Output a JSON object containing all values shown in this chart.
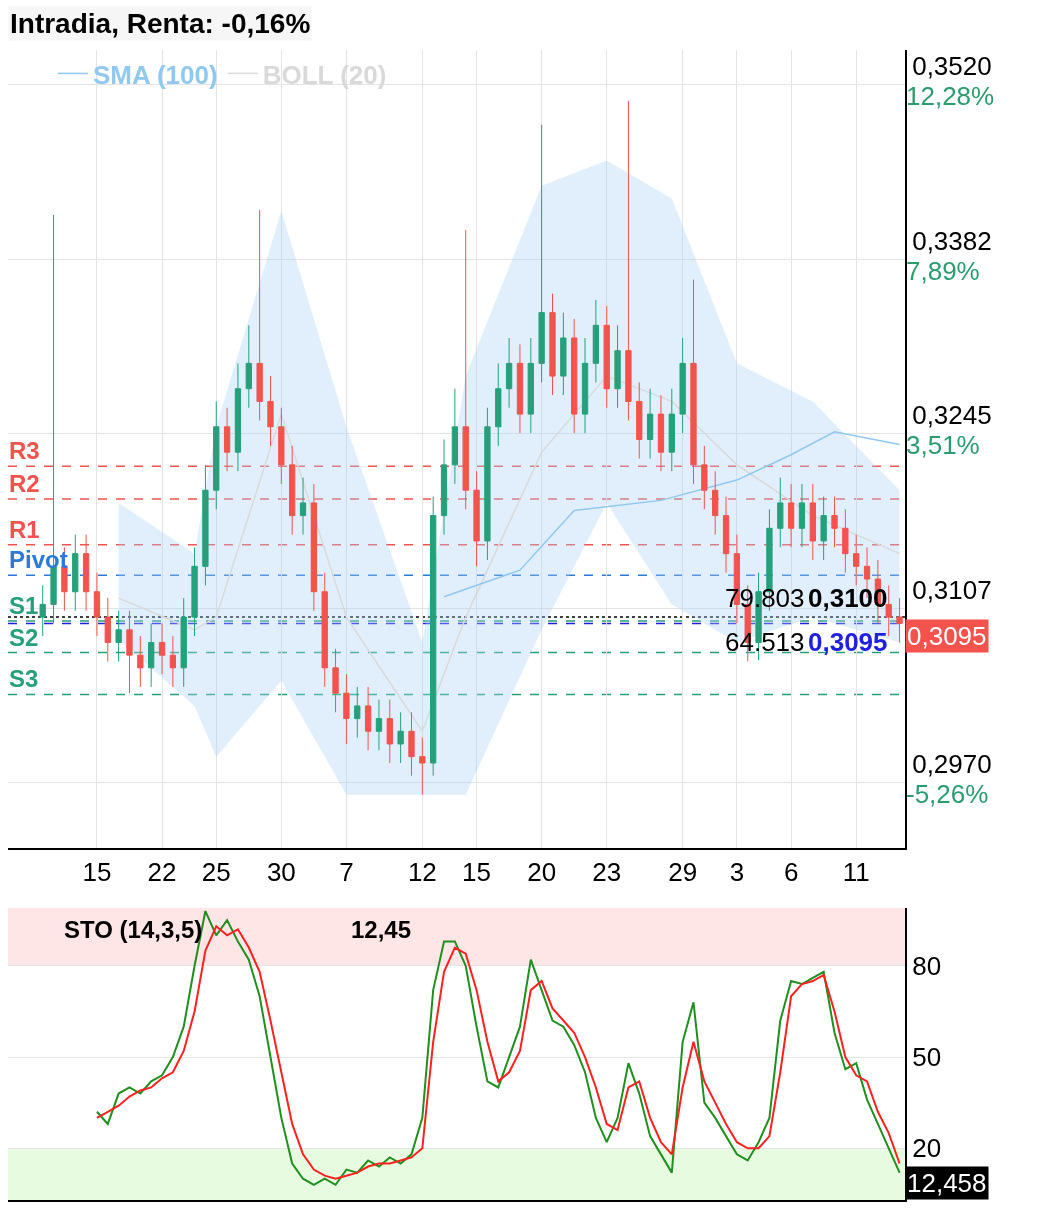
{
  "chart_data": [
    {
      "type": "candlestick",
      "title": "Intradia, Renta: -0,16%",
      "categories": [
        null,
        null,
        null,
        null,
        null,
        "15",
        null,
        null,
        null,
        null,
        null,
        "22",
        null,
        null,
        null,
        null,
        "25",
        null,
        null,
        null,
        null,
        null,
        "30",
        null,
        null,
        null,
        null,
        null,
        "7",
        null,
        null,
        null,
        null,
        null,
        null,
        "12",
        null,
        null,
        null,
        null,
        "15",
        null,
        null,
        null,
        null,
        null,
        "20",
        null,
        null,
        null,
        null,
        null,
        "23",
        null,
        null,
        null,
        null,
        null,
        null,
        "29",
        null,
        null,
        null,
        null,
        "3",
        null,
        null,
        null,
        null,
        "6",
        null,
        null,
        null,
        null,
        null,
        "11",
        null,
        null,
        null,
        null
      ],
      "ohlc": [
        [
          0.31,
          0.3125,
          0.3085,
          0.311
        ],
        [
          0.311,
          0.3417,
          0.3095,
          0.314
        ],
        [
          0.314,
          0.3155,
          0.3105,
          0.312
        ],
        [
          0.312,
          0.3165,
          0.3105,
          0.315
        ],
        [
          0.315,
          0.3165,
          0.3105,
          0.312
        ],
        [
          0.312,
          0.3135,
          0.3085,
          0.31
        ],
        [
          0.31,
          0.3115,
          0.3065,
          0.308
        ],
        [
          0.308,
          0.3105,
          0.3065,
          0.309
        ],
        [
          0.309,
          0.3105,
          0.304,
          0.307
        ],
        [
          0.307,
          0.3085,
          0.3045,
          0.306
        ],
        [
          0.306,
          0.3095,
          0.3045,
          0.308
        ],
        [
          0.308,
          0.3095,
          0.3055,
          0.307
        ],
        [
          0.307,
          0.3085,
          0.3045,
          0.306
        ],
        [
          0.306,
          0.3115,
          0.3045,
          0.31
        ],
        [
          0.31,
          0.3155,
          0.3085,
          0.314
        ],
        [
          0.314,
          0.322,
          0.3125,
          0.32
        ],
        [
          0.32,
          0.327,
          0.3185,
          0.325
        ],
        [
          0.325,
          0.3265,
          0.3215,
          0.323
        ],
        [
          0.323,
          0.33,
          0.3215,
          0.328
        ],
        [
          0.328,
          0.333,
          0.3265,
          0.33
        ],
        [
          0.33,
          0.3421,
          0.3255,
          0.327
        ],
        [
          0.327,
          0.329,
          0.3235,
          0.325
        ],
        [
          0.325,
          0.3265,
          0.3205,
          0.322
        ],
        [
          0.322,
          0.3235,
          0.3165,
          0.318
        ],
        [
          0.318,
          0.321,
          0.3165,
          0.319
        ],
        [
          0.319,
          0.3205,
          0.3105,
          0.312
        ],
        [
          0.312,
          0.3135,
          0.3045,
          0.306
        ],
        [
          0.306,
          0.3075,
          0.3025,
          0.304
        ],
        [
          0.304,
          0.3055,
          0.3,
          0.302
        ],
        [
          0.302,
          0.3045,
          0.3005,
          0.303
        ],
        [
          0.303,
          0.3045,
          0.2995,
          0.301
        ],
        [
          0.301,
          0.3035,
          0.2995,
          0.302
        ],
        [
          0.302,
          0.3035,
          0.2985,
          0.3
        ],
        [
          0.3,
          0.3025,
          0.2985,
          0.301
        ],
        [
          0.301,
          0.3025,
          0.2975,
          0.299
        ],
        [
          0.299,
          0.3005,
          0.296,
          0.2985
        ],
        [
          0.2985,
          0.3195,
          0.2975,
          0.318
        ],
        [
          0.318,
          0.324,
          0.3165,
          0.322
        ],
        [
          0.322,
          0.328,
          0.3205,
          0.325
        ],
        [
          0.325,
          0.3405,
          0.3185,
          0.32
        ],
        [
          0.32,
          0.3215,
          0.314,
          0.316
        ],
        [
          0.316,
          0.3265,
          0.3145,
          0.325
        ],
        [
          0.325,
          0.33,
          0.3235,
          0.328
        ],
        [
          0.328,
          0.332,
          0.3265,
          0.33
        ],
        [
          0.33,
          0.3315,
          0.3245,
          0.326
        ],
        [
          0.326,
          0.332,
          0.3245,
          0.33
        ],
        [
          0.33,
          0.3488,
          0.3285,
          0.334
        ],
        [
          0.334,
          0.3355,
          0.3275,
          0.329
        ],
        [
          0.329,
          0.334,
          0.3275,
          0.332
        ],
        [
          0.332,
          0.3335,
          0.3245,
          0.326
        ],
        [
          0.326,
          0.332,
          0.3245,
          0.33
        ],
        [
          0.33,
          0.335,
          0.3285,
          0.333
        ],
        [
          0.333,
          0.3345,
          0.3265,
          0.328
        ],
        [
          0.328,
          0.333,
          0.3265,
          0.331
        ],
        [
          0.331,
          0.3507,
          0.3255,
          0.327
        ],
        [
          0.327,
          0.3285,
          0.3225,
          0.324
        ],
        [
          0.324,
          0.328,
          0.3225,
          0.326
        ],
        [
          0.326,
          0.3275,
          0.3215,
          0.323
        ],
        [
          0.323,
          0.328,
          0.3215,
          0.326
        ],
        [
          0.326,
          0.332,
          0.3245,
          0.33
        ],
        [
          0.33,
          0.3366,
          0.3205,
          0.322
        ],
        [
          0.322,
          0.3235,
          0.3185,
          0.32
        ],
        [
          0.32,
          0.3215,
          0.3165,
          0.318
        ],
        [
          0.318,
          0.3195,
          0.3135,
          0.315
        ],
        [
          0.315,
          0.3165,
          0.3095,
          0.311
        ],
        [
          0.311,
          0.3125,
          0.3065,
          0.308
        ],
        [
          0.308,
          0.3135,
          0.3066,
          0.312
        ],
        [
          0.312,
          0.3185,
          0.3105,
          0.317
        ],
        [
          0.317,
          0.321,
          0.3155,
          0.319
        ],
        [
          0.319,
          0.3205,
          0.3155,
          0.317
        ],
        [
          0.317,
          0.3205,
          0.3155,
          0.319
        ],
        [
          0.319,
          0.3205,
          0.3145,
          0.316
        ],
        [
          0.316,
          0.3195,
          0.3145,
          0.318
        ],
        [
          0.318,
          0.3195,
          0.3155,
          0.317
        ],
        [
          0.317,
          0.3185,
          0.3135,
          0.315
        ],
        [
          0.315,
          0.3165,
          0.3125,
          0.314
        ],
        [
          0.314,
          0.3155,
          0.3115,
          0.313
        ],
        [
          0.313,
          0.3145,
          0.3095,
          0.311
        ],
        [
          0.311,
          0.3125,
          0.3085,
          0.31
        ],
        [
          0.31,
          0.3115,
          0.308,
          0.3095
        ]
      ],
      "colors": [
        "#26a07a",
        "#26a07a",
        "#f4524d",
        "#26a07a",
        "#f4524d",
        "#f4524d",
        "#f4524d",
        "#26a07a",
        "#f4524d",
        "#f4524d",
        "#26a07a",
        "#f4524d",
        "#f4524d",
        "#26a07a",
        "#26a07a",
        "#26a07a",
        "#26a07a",
        "#f4524d",
        "#26a07a",
        "#26a07a",
        "#f4524d",
        "#f4524d",
        "#f4524d",
        "#f4524d",
        "#26a07a",
        "#f4524d",
        "#f4524d",
        "#f4524d",
        "#f4524d",
        "#26a07a",
        "#f4524d",
        "#26a07a",
        "#f4524d",
        "#26a07a",
        "#f4524d",
        "#f4524d",
        "#26a07a",
        "#26a07a",
        "#26a07a",
        "#f4524d",
        "#f4524d",
        "#26a07a",
        "#26a07a",
        "#26a07a",
        "#f4524d",
        "#26a07a",
        "#26a07a",
        "#f4524d",
        "#26a07a",
        "#f4524d",
        "#26a07a",
        "#26a07a",
        "#f4524d",
        "#26a07a",
        "#f4524d",
        "#f4524d",
        "#26a07a",
        "#f4524d",
        "#26a07a",
        "#26a07a",
        "#f4524d",
        "#f4524d",
        "#f4524d",
        "#f4524d",
        "#f4524d",
        "#f4524d",
        "#26a07a",
        "#26a07a",
        "#26a07a",
        "#f4524d",
        "#26a07a",
        "#f4524d",
        "#26a07a",
        "#f4524d",
        "#f4524d",
        "#f4524d",
        "#f4524d",
        "#f4524d",
        "#f4524d",
        "#f4524d"
      ],
      "series": [
        {
          "name": "SMA (100)",
          "type": "line",
          "color": "#90c8f0",
          "values": [
            null,
            null,
            null,
            null,
            null,
            null,
            null,
            null,
            null,
            null,
            null,
            null,
            null,
            null,
            null,
            null,
            null,
            null,
            null,
            null,
            null,
            null,
            null,
            null,
            null,
            null,
            null,
            null,
            null,
            null,
            null,
            null,
            null,
            null,
            null,
            null,
            null,
            0.3116,
            null,
            null,
            null,
            null,
            null,
            null,
            0.3137,
            null,
            null,
            null,
            null,
            0.3184,
            null,
            null,
            null,
            null,
            null,
            null,
            null,
            0.3192,
            null,
            null,
            null,
            null,
            null,
            null,
            0.3208,
            null,
            null,
            null,
            null,
            0.3228,
            null,
            null,
            null,
            0.3246,
            null,
            null,
            null,
            null,
            null,
            0.3236
          ]
        },
        {
          "name": "BOLL (20)",
          "type": "line",
          "color": "#d9d9d9",
          "values": [
            null,
            null,
            null,
            null,
            null,
            null,
            null,
            0.3115,
            null,
            null,
            null,
            null,
            null,
            null,
            0.309,
            null,
            0.31,
            null,
            null,
            null,
            null,
            null,
            0.326,
            null,
            null,
            null,
            null,
            null,
            0.31,
            null,
            null,
            null,
            null,
            null,
            null,
            0.301,
            null,
            null,
            null,
            0.31,
            null,
            null,
            null,
            null,
            null,
            null,
            0.323,
            null,
            null,
            null,
            null,
            null,
            0.329,
            null,
            null,
            null,
            null,
            null,
            0.327,
            null,
            null,
            null,
            null,
            null,
            0.322,
            null,
            null,
            null,
            null,
            null,
            null,
            0.318,
            null,
            null,
            null,
            null,
            null,
            null,
            null,
            0.315
          ],
          "lower": [
            null,
            null,
            null,
            null,
            null,
            null,
            null,
            0.3082,
            null,
            null,
            null,
            null,
            null,
            null,
            0.303,
            null,
            0.299,
            null,
            null,
            null,
            null,
            null,
            0.305,
            null,
            null,
            null,
            null,
            null,
            0.296,
            null,
            null,
            null,
            null,
            null,
            null,
            0.296,
            null,
            null,
            null,
            0.296,
            null,
            null,
            null,
            null,
            null,
            null,
            0.309,
            null,
            null,
            null,
            null,
            null,
            0.319,
            null,
            null,
            null,
            null,
            null,
            0.311,
            null,
            null,
            null,
            null,
            null,
            0.308,
            null,
            null,
            null,
            null,
            null,
            null,
            0.31,
            null,
            null,
            null,
            null,
            null,
            null,
            null,
            0.308
          ],
          "upper": [
            null,
            null,
            null,
            null,
            null,
            null,
            null,
            0.319,
            null,
            null,
            null,
            null,
            null,
            null,
            0.315,
            null,
            0.325,
            null,
            null,
            null,
            null,
            null,
            0.342,
            null,
            null,
            null,
            null,
            null,
            0.325,
            null,
            null,
            null,
            null,
            null,
            null,
            0.308,
            null,
            null,
            null,
            0.329,
            null,
            null,
            null,
            null,
            null,
            null,
            0.344,
            null,
            null,
            null,
            null,
            null,
            0.346,
            null,
            null,
            null,
            null,
            null,
            0.343,
            null,
            null,
            null,
            null,
            null,
            0.33,
            null,
            null,
            null,
            null,
            null,
            null,
            0.327,
            null,
            null,
            null,
            null,
            null,
            null,
            null,
            0.32
          ]
        }
      ],
      "ylim": [
        0.2918,
        0.3547
      ],
      "yticks": [
        {
          "value": 0.352,
          "label": "0,3520"
        },
        {
          "value": 0.3382,
          "label": "0,3382"
        },
        {
          "value": 0.3245,
          "label": "0,3245"
        },
        {
          "value": 0.3107,
          "label": "0,3107"
        },
        {
          "value": 0.297,
          "label": "0,2970"
        }
      ],
      "y2lim": [
        -6.92,
        13.14
      ],
      "y2ticks": [
        {
          "value": 12.28,
          "label": "12,28%"
        },
        {
          "value": 7.89,
          "label": "7,89%"
        },
        {
          "value": 3.51,
          "label": "3,51%"
        },
        {
          "value": -5.26,
          "label": "-5,26%"
        }
      ],
      "ref_lines": [
        {
          "axis": "y",
          "value": 0.3219,
          "label": "R3",
          "color": "#f4524d",
          "line_style": "dashed"
        },
        {
          "axis": "y",
          "value": 0.3193,
          "label": "R2",
          "color": "#f4524d",
          "line_style": "dashed"
        },
        {
          "axis": "y",
          "value": 0.3157,
          "label": "R1",
          "color": "#f4524d",
          "line_style": "dashed"
        },
        {
          "axis": "y",
          "value": 0.3133,
          "label": "Pivot",
          "color": "#2a7ad8",
          "line_style": "dashed"
        },
        {
          "axis": "y",
          "value": 0.3097,
          "label": "S1",
          "color": "#26a07a",
          "line_style": "dashed"
        },
        {
          "axis": "y",
          "value": 0.3072,
          "label": "S2",
          "color": "#26a07a",
          "line_style": "dashed"
        },
        {
          "axis": "y",
          "value": 0.3039,
          "label": "S3",
          "color": "#26a07a",
          "line_style": "dashed"
        },
        {
          "axis": "y",
          "value": 0.31,
          "label": "0,3100",
          "color": "#000000",
          "line_style": "dotted"
        },
        {
          "axis": "y",
          "value": 0.3095,
          "label": "0,3095",
          "color": "#2020e0",
          "line_style": "dashed"
        }
      ],
      "annotations": [
        "79.803",
        "64.513",
        "0,3095"
      ],
      "grid": true,
      "legend": "top left"
    },
    {
      "type": "line",
      "title": "STO (14,3,5)",
      "categories": [
        null,
        null,
        null,
        null,
        null,
        null,
        null,
        null,
        null,
        null,
        null,
        null,
        null,
        null,
        null,
        null,
        null,
        null,
        null,
        null,
        null,
        null,
        null,
        null,
        null,
        null,
        null,
        null,
        null,
        null,
        null,
        null,
        null,
        null,
        null,
        null,
        null,
        null,
        null,
        null,
        null,
        null,
        null,
        null,
        null,
        null,
        null,
        null,
        null,
        null,
        null,
        null,
        null,
        null,
        null,
        null,
        null,
        null,
        null,
        null,
        null,
        null,
        null,
        null,
        null,
        null,
        null,
        null,
        null,
        null,
        null,
        null,
        null,
        null,
        null,
        null,
        null,
        null,
        null,
        null
      ],
      "series": [
        {
          "color": "#1f8f1f",
          "values": [
            null,
            null,
            null,
            null,
            null,
            32,
            28,
            38,
            40,
            38,
            42,
            44,
            50,
            60,
            80,
            98,
            90,
            95,
            88,
            82,
            70,
            50,
            30,
            15,
            10,
            8,
            10,
            8,
            13,
            12,
            16,
            14,
            17,
            15,
            18,
            30,
            72,
            88,
            88,
            80,
            60,
            42,
            40,
            50,
            60,
            82,
            72,
            62,
            60,
            54,
            45,
            30,
            22,
            30,
            48,
            38,
            24,
            18,
            12,
            55,
            68,
            35,
            30,
            24,
            18,
            16,
            22,
            30,
            62,
            75,
            74,
            76,
            78,
            58,
            46,
            48,
            36,
            28,
            20,
            12
          ]
        },
        {
          "color": "#ff2020",
          "values": [
            null,
            null,
            null,
            null,
            null,
            30,
            32,
            34,
            37,
            39,
            40,
            43,
            45,
            52,
            65,
            85,
            93,
            90,
            92,
            86,
            78,
            62,
            45,
            28,
            18,
            13,
            11,
            10,
            11,
            12,
            14,
            15,
            15,
            16,
            17,
            20,
            55,
            78,
            86,
            84,
            72,
            55,
            42,
            45,
            52,
            72,
            75,
            66,
            62,
            58,
            50,
            40,
            28,
            26,
            40,
            42,
            30,
            22,
            18,
            40,
            55,
            42,
            35,
            28,
            22,
            20,
            20,
            24,
            45,
            70,
            74,
            75,
            77,
            65,
            50,
            44,
            42,
            32,
            25,
            15
          ]
        }
      ],
      "ylim": [
        3,
        99
      ],
      "yticks": [
        20,
        50,
        80
      ],
      "bands": [
        {
          "axis": "y",
          "from": 80,
          "to": 99,
          "color": "#ffe6e6"
        },
        {
          "axis": "y",
          "from": 3,
          "to": 20,
          "color": "#e6fbe0"
        }
      ],
      "annotations": [
        "12,45",
        "12,458"
      ],
      "tick_labels": "y",
      "grid": "y",
      "marker": "none",
      "line_style": "solid"
    }
  ]
}
